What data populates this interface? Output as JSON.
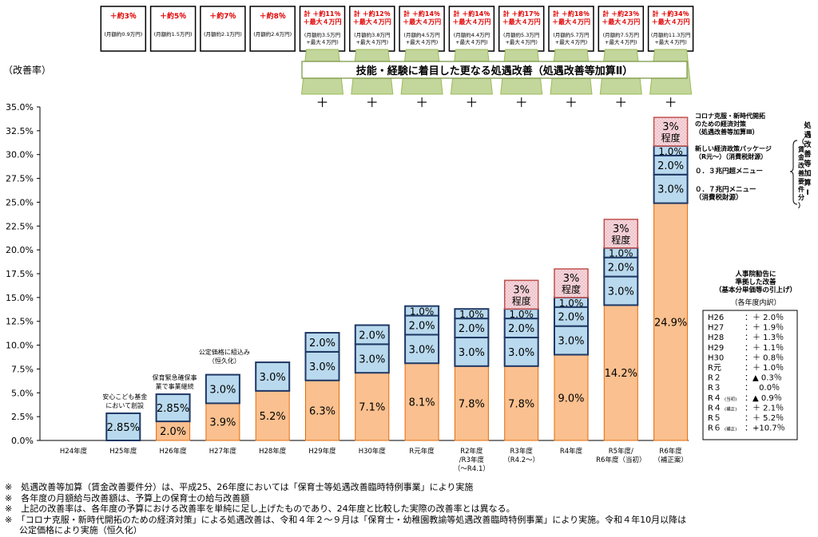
{
  "y_axis_unit": "（改善率）",
  "banner": "技能・経験に着目した更なる処遇改善（処遇改善等加算Ⅱ）",
  "plus_sign": "＋",
  "top_boxes": [
    {
      "main": "＋約3％",
      "sub1": "(月額約0.9万円)",
      "sub2": ""
    },
    {
      "main": "＋約5％",
      "sub1": "(月額約1.5万円)",
      "sub2": ""
    },
    {
      "main": "＋約7％",
      "sub1": "(月額約2.1万円)",
      "sub2": ""
    },
    {
      "main": "＋約8％",
      "sub1": "(月額約2.6万円)",
      "sub2": ""
    },
    {
      "main": "計 ＋約11％",
      "main2": "＋最大４万円",
      "sub1": "(月額約3.5万円",
      "sub2": "+最大４万円)"
    },
    {
      "main": "計 ＋約12％",
      "main2": "＋最大４万円",
      "sub1": "(月額約3.8万円",
      "sub2": "+最大４万円)"
    },
    {
      "main": "計 ＋約14％",
      "main2": "＋最大４万円",
      "sub1": "(月額約4.5万円",
      "sub2": "+最大４万円)"
    },
    {
      "main": "計 ＋約14％",
      "main2": "＋最大４万円",
      "sub1": "(月額約4.4万円",
      "sub2": "+最大４万円)"
    },
    {
      "main": "計 ＋約17％",
      "main2": "＋最大４万円",
      "sub1": "(月額約5.3万円",
      "sub2": "+最大４万円)"
    },
    {
      "main": "計 ＋約18％",
      "main2": "＋最大４万円",
      "sub1": "(月額約5.7万円",
      "sub2": "+最大４万円)"
    },
    {
      "main": "計 ＋約23％",
      "main2": "＋最大４万円",
      "sub1": "(月額約7.5万円",
      "sub2": "+最大４万円)"
    },
    {
      "main": "計 ＋約34％",
      "main2": "＋最大４万円",
      "sub1": "(月額約11.3万円",
      "sub2": "+最大４万円)"
    }
  ],
  "annotations": {
    "h25": [
      "安心こども基金",
      "において創設"
    ],
    "h26": [
      "保育緊急確保事",
      "業で事業継続"
    ],
    "h27": [
      "公定価格に組込み",
      "（恒久化）"
    ]
  },
  "right_labels": {
    "corona": [
      "コロナ克服・新時代開拓",
      "のための経済対策",
      "（処遇改善等加算Ⅲ）"
    ],
    "new_package": [
      "新しい経済政策パッケージ",
      "（R元～）（消費税財源）"
    ],
    "menu_03": "０．３兆円超メニュー",
    "menu_07": [
      "０．７兆円メニュー",
      "（消費税財源）"
    ],
    "kasan1": [
      "処",
      "遇",
      "改",
      "善",
      "等",
      "加",
      "算",
      "Ⅰ"
    ],
    "kasan1_sub": [
      "（",
      "賃",
      "金",
      "改",
      "善",
      "要",
      "件",
      "分",
      "）"
    ],
    "jinjiin": [
      "人事院勧告に",
      "準拠した改善",
      "（基本分単価等の引上げ）"
    ],
    "breakdown_title": "（各年度内訳）",
    "breakdown": [
      {
        "y": "H26",
        "v": "：＋ 2.0％"
      },
      {
        "y": "H27",
        "v": "：＋ 1.9％"
      },
      {
        "y": "H28",
        "v": "：＋ 1.3％"
      },
      {
        "y": "H29",
        "v": "：＋ 1.1％"
      },
      {
        "y": "H30",
        "v": "：＋ 0.8％"
      },
      {
        "y": "R元",
        "v": "：＋ 1.0％"
      },
      {
        "y": "R２",
        "v": "：▲ 0.3％"
      },
      {
        "y": "R３",
        "v": "：　 0.0％"
      },
      {
        "y": "R４",
        "tag": "(当初)",
        "v": "：▲ 0.9％"
      },
      {
        "y": "R４",
        "tag": "(補正)",
        "v": "：＋ 2.1％"
      },
      {
        "y": "R５",
        "v": "：＋ 5.2％"
      },
      {
        "y": "R６",
        "tag": "(補正)",
        "v": "：+10.7％"
      }
    ]
  },
  "colors": {
    "orange": "#fac08f",
    "orange_edge": "#e46c0a",
    "blue_fill": "#b9d9ee",
    "blue_edge": "#1f3864",
    "pink_fill": "#f6d9de",
    "pink_edge": "#c0504d",
    "green": "#c3d69b",
    "red_text": "#e00000"
  },
  "chart_data": {
    "type": "bar",
    "stacked": true,
    "ylabel": "（改善率）",
    "ylim": [
      0,
      35
    ],
    "yticks": [
      "0.0%",
      "2.5%",
      "5.0%",
      "7.5%",
      "10.0%",
      "12.5%",
      "15.0%",
      "17.5%",
      "20.0%",
      "22.5%",
      "25.0%",
      "27.5%",
      "30.0%",
      "32.5%",
      "35.0%"
    ],
    "categories": [
      [
        "H24年度"
      ],
      [
        "H25年度"
      ],
      [
        "H26年度"
      ],
      [
        "H27年度"
      ],
      [
        "H28年度"
      ],
      [
        "H29年度"
      ],
      [
        "H30年度"
      ],
      [
        "R元年度"
      ],
      [
        "R2年度",
        "/R3年度",
        "（～R4.1）"
      ],
      [
        "R3年度",
        "（R4.2～）"
      ],
      [
        "R4年度"
      ],
      [
        "R5年度/",
        "R6年度（当初）"
      ],
      [
        "R6年度",
        "（補正案）"
      ]
    ],
    "series": [
      {
        "key": "base",
        "values": [
          0,
          0,
          2.0,
          3.9,
          5.2,
          6.3,
          7.1,
          8.1,
          7.8,
          7.8,
          9.0,
          14.2,
          24.9
        ],
        "labels": [
          "",
          "",
          "2.0%",
          "3.9%",
          "5.2%",
          "6.3%",
          "7.1%",
          "8.1%",
          "7.8%",
          "7.8%",
          "9.0%",
          "14.2%",
          "24.9%"
        ]
      },
      {
        "key": "s1",
        "values": [
          0,
          2.85,
          2.85,
          3.0,
          3.0,
          3.0,
          3.0,
          3.0,
          3.0,
          3.0,
          3.0,
          3.0,
          3.0
        ],
        "labels": [
          "",
          "2.85%",
          "2.85%",
          "3.0%",
          "3.0%",
          "3.0%",
          "3.0%",
          "3.0%",
          "3.0%",
          "3.0%",
          "3.0%",
          "3.0%",
          "3.0%"
        ]
      },
      {
        "key": "s2",
        "values": [
          0,
          0,
          0,
          0,
          0,
          2.0,
          2.0,
          2.0,
          2.0,
          2.0,
          2.0,
          2.0,
          2.0
        ],
        "labels": [
          "",
          "",
          "",
          "",
          "",
          "2.0%",
          "2.0%",
          "2.0%",
          "2.0%",
          "2.0%",
          "2.0%",
          "2.0%",
          "2.0%"
        ]
      },
      {
        "key": "s3",
        "values": [
          0,
          0,
          0,
          0,
          0,
          0,
          0,
          1.0,
          1.0,
          1.0,
          1.0,
          1.0,
          1.0
        ],
        "labels": [
          "",
          "",
          "",
          "",
          "",
          "",
          "",
          "1.0%",
          "1.0%",
          "1.0%",
          "1.0%",
          "1.0%",
          "1.0%"
        ]
      },
      {
        "key": "s4",
        "values": [
          0,
          0,
          0,
          0,
          0,
          0,
          0,
          0,
          0,
          3.0,
          3.0,
          3.0,
          3.0
        ],
        "labels": [
          "",
          "",
          "",
          "",
          "",
          "",
          "",
          "",
          "",
          "3%程度",
          "3%程度",
          "3%程度",
          "3%程度"
        ]
      }
    ]
  },
  "notes": [
    "※　処遇改善等加算（賃金改善要件分）は、平成25、26年度においては「保育士等処遇改善臨時特例事業」により実施",
    "※　各年度の月額給与改善額は、予算上の保育士の給与改善額",
    "※　上記の改善率は、各年度の予算における改善率を単純に足し上げたものであり、24年度と比較した実際の改善率とは異なる。",
    "※　「コロナ克服・新時代開拓のための経済対策」による処遇改善は、令和４年２～９月は「保育士・幼稚園教諭等処遇改善臨時特例事業」により実施。令和４年10月以降は",
    "公定価格により実施（恒久化）"
  ]
}
